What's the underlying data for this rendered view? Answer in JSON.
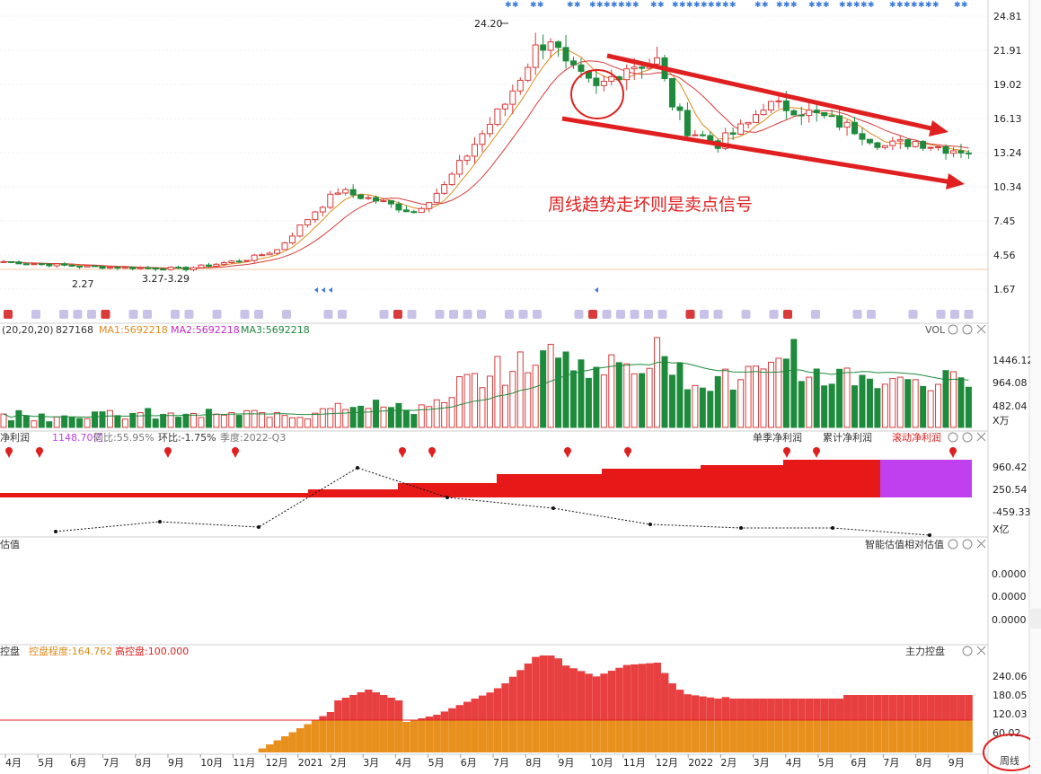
{
  "colors": {
    "up": "#d93a3a",
    "down": "#1e8a3c",
    "ma1": "#e08a1e",
    "ma2": "#c828c8",
    "ma3": "#1e8a3c",
    "accent_blue": "#3a7ad9",
    "annotation_red": "#e02020",
    "profit_bar": "#e61818",
    "profit_bar_latest": "#c040f0",
    "control_orange": "#e8901e",
    "control_red": "#e84040",
    "grid": "#e6e6e6"
  },
  "main_panel": {
    "y_ticks": [
      "24.81",
      "21.91",
      "19.02",
      "16.13",
      "13.24",
      "10.34",
      "7.45",
      "4.56",
      "1.67"
    ],
    "high_label": "24.20",
    "low_label": "2.27",
    "low_range_label": "3.27-3.29",
    "annotation": "周线趋势走坏则是卖点信号"
  },
  "volume_panel": {
    "params": "(20,20,20)",
    "current": "827168",
    "ma1": "MA1:5692218",
    "ma2": "MA2:5692218",
    "ma3": "MA3:5692218",
    "title": "VOL",
    "y_ticks": [
      "1446.12",
      "964.08",
      "482.04"
    ],
    "unit": "X万"
  },
  "profit_panel": {
    "title": "净利润",
    "value": "1148.70亿",
    "yoy": "同比:55.95%",
    "qoq": "环比:-1.75%",
    "quarter": "季度:2022-Q3",
    "tab_single": "单季净利润",
    "tab_cumulative": "累计净利润",
    "tab_rolling": "滚动净利润",
    "y_ticks": [
      "960.42",
      "250.54",
      "-459.33"
    ],
    "unit": "X亿"
  },
  "valuation_panel": {
    "title": "估值",
    "subtitle": "智能估值相对估值",
    "y_ticks": [
      "0.0000",
      "0.0000",
      "0.0000"
    ]
  },
  "control_panel": {
    "title": "控盘",
    "degree": "控盘程度:164.762",
    "high": "高控盘:100.000",
    "subtitle": "主力控盘",
    "y_ticks": [
      "240.06",
      "180.05",
      "120.03",
      "60.02"
    ]
  },
  "x_axis": {
    "labels": [
      "4月",
      "5月",
      "6月",
      "7月",
      "8月",
      "9月",
      "10月",
      "11月",
      "12月",
      "2021",
      "2月",
      "3月",
      "4月",
      "5月",
      "6月",
      "7月",
      "8月",
      "9月",
      "10月",
      "11月",
      "12月",
      "2022",
      "2月",
      "3月",
      "4月",
      "5月",
      "6月",
      "7月",
      "8月",
      "9月"
    ],
    "period_button": "周线"
  },
  "chart_data": {
    "type": "candlestick",
    "description_series": [
      {
        "name": "MA1"
      },
      {
        "name": "MA2"
      },
      {
        "name": "MA3"
      }
    ],
    "price_range": [
      1.67,
      24.81
    ],
    "high": 24.2,
    "low": 2.27,
    "control_values": [
      164.762,
      100.0
    ]
  }
}
